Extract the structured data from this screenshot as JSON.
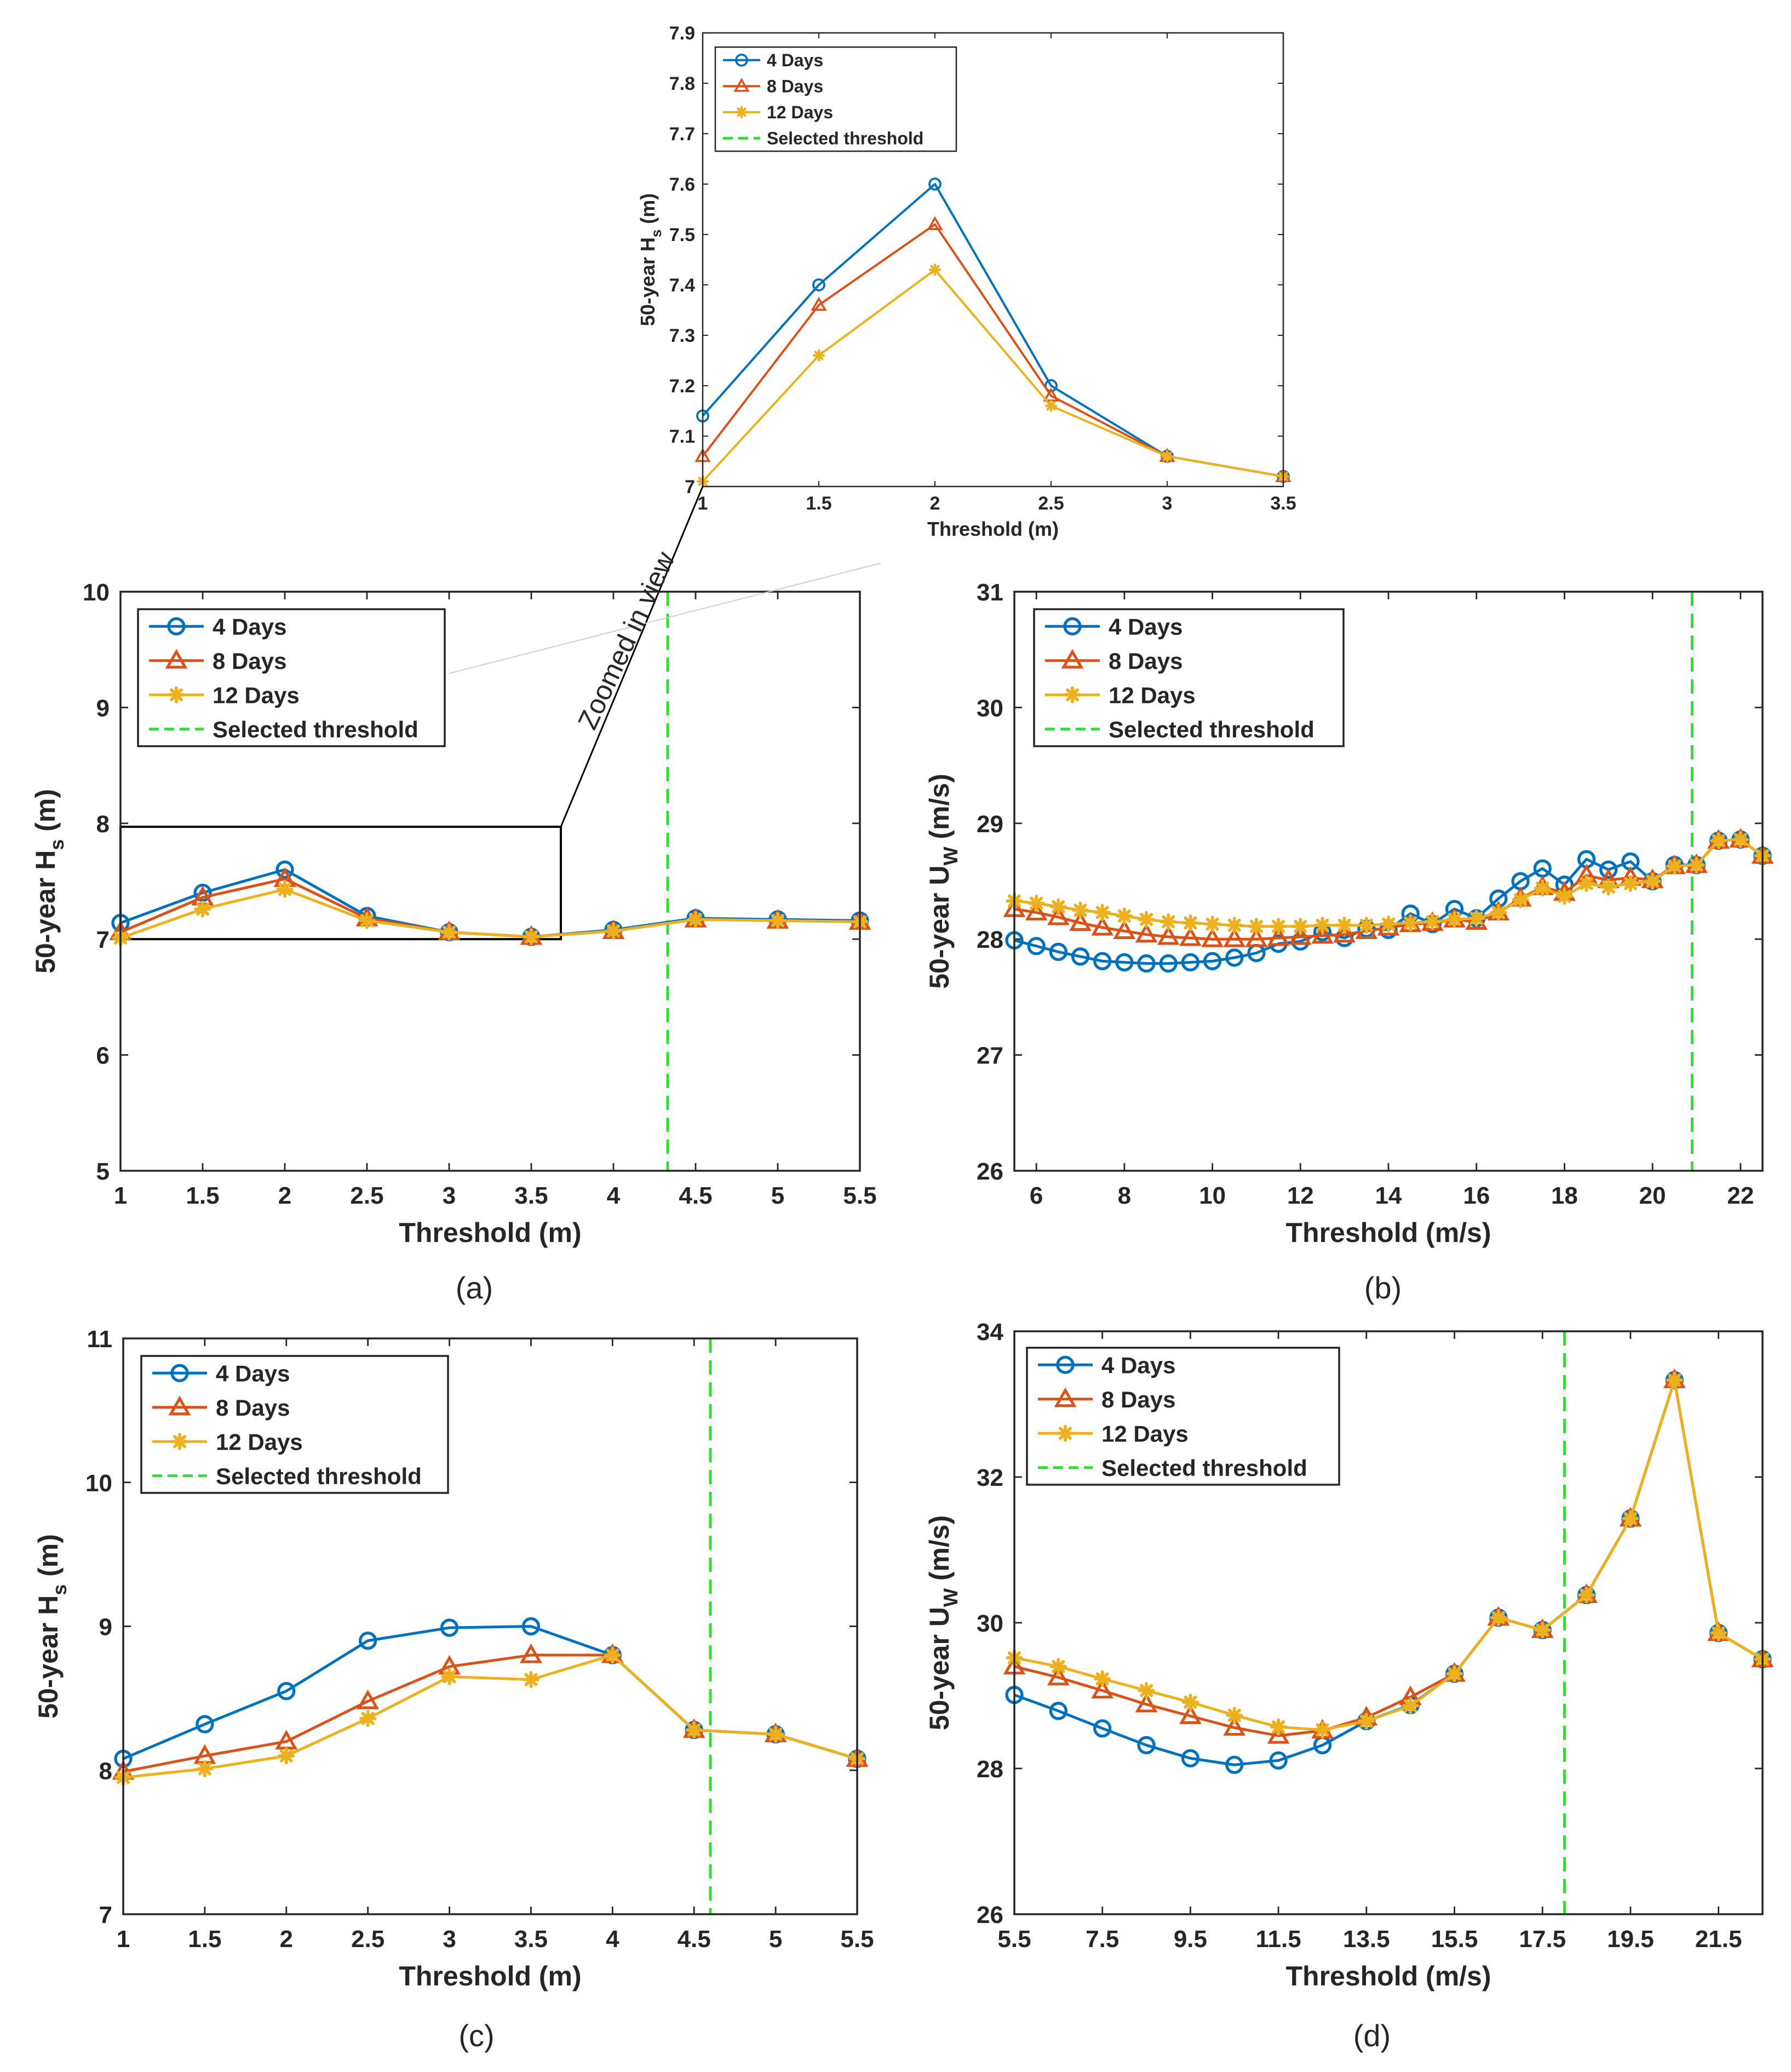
{
  "colors": {
    "s4": "#0072BD",
    "s8": "#D95319",
    "s12": "#EDB120",
    "thr": "#33DD33",
    "axis": "#262626"
  },
  "legend_labels": [
    "4 Days",
    "8 Days",
    "12 Days",
    "Selected threshold"
  ],
  "zoom_label": "Zoomed in view",
  "chart_data": [
    {
      "id": "inset",
      "type": "line",
      "caption": "",
      "xlabel": "Threshold (m)",
      "ylabel": "50-year H_s (m)",
      "ylabel_main": "50-year H",
      "ylabel_sub": "s",
      "ylabel_tail": " (m)",
      "xlim": [
        1,
        3.5
      ],
      "ylim": [
        7,
        7.9
      ],
      "xticks": [
        1,
        1.5,
        2,
        2.5,
        3,
        3.5
      ],
      "xtick_labels": [
        "1",
        "1.5",
        "2",
        "2.5",
        "3",
        "3.5"
      ],
      "yticks": [
        7,
        7.1,
        7.2,
        7.3,
        7.4,
        7.5,
        7.6,
        7.7,
        7.8,
        7.9
      ],
      "ytick_labels": [
        "7",
        "7.1",
        "7.2",
        "7.3",
        "7.4",
        "7.5",
        "7.6",
        "7.7",
        "7.8",
        "7.9"
      ],
      "threshold": null,
      "series": [
        {
          "name": "4 Days",
          "x": [
            1,
            1.5,
            2,
            2.5,
            3,
            3.5
          ],
          "values": [
            7.14,
            7.4,
            7.6,
            7.2,
            7.06,
            7.02
          ]
        },
        {
          "name": "8 Days",
          "x": [
            1,
            1.5,
            2,
            2.5,
            3,
            3.5
          ],
          "values": [
            7.06,
            7.36,
            7.52,
            7.18,
            7.06,
            7.02
          ]
        },
        {
          "name": "12 Days",
          "x": [
            1,
            1.5,
            2,
            2.5,
            3,
            3.5
          ],
          "values": [
            7.01,
            7.26,
            7.43,
            7.16,
            7.06,
            7.02
          ]
        }
      ]
    },
    {
      "id": "a",
      "type": "line",
      "caption": "(a)",
      "xlabel": "Threshold (m)",
      "ylabel": "50-year H_s (m)",
      "ylabel_main": "50-year H",
      "ylabel_sub": "s",
      "ylabel_tail": " (m)",
      "xlim": [
        1,
        5.5
      ],
      "ylim": [
        5,
        10
      ],
      "xticks": [
        1,
        1.5,
        2,
        2.5,
        3,
        3.5,
        4,
        4.5,
        5,
        5.5
      ],
      "xtick_labels": [
        "1",
        "1.5",
        "2",
        "2.5",
        "3",
        "3.5",
        "4",
        "4.5",
        "5",
        "5.5"
      ],
      "yticks": [
        5,
        6,
        7,
        8,
        9,
        10
      ],
      "ytick_labels": [
        "5",
        "6",
        "7",
        "8",
        "9",
        "10"
      ],
      "threshold": 4.33,
      "zoom_box": {
        "x": [
          1,
          3.68
        ],
        "y": [
          7,
          7.97
        ]
      },
      "series": [
        {
          "name": "4 Days",
          "x": [
            1,
            1.5,
            2,
            2.5,
            3,
            3.5,
            4,
            4.5,
            5,
            5.5
          ],
          "values": [
            7.14,
            7.4,
            7.6,
            7.2,
            7.06,
            7.02,
            7.08,
            7.18,
            7.17,
            7.16
          ]
        },
        {
          "name": "8 Days",
          "x": [
            1,
            1.5,
            2,
            2.5,
            3,
            3.5,
            4,
            4.5,
            5,
            5.5
          ],
          "values": [
            7.06,
            7.36,
            7.52,
            7.18,
            7.06,
            7.02,
            7.07,
            7.17,
            7.16,
            7.15
          ]
        },
        {
          "name": "12 Days",
          "x": [
            1,
            1.5,
            2,
            2.5,
            3,
            3.5,
            4,
            4.5,
            5,
            5.5
          ],
          "values": [
            7.01,
            7.26,
            7.43,
            7.16,
            7.06,
            7.02,
            7.07,
            7.17,
            7.16,
            7.15
          ]
        }
      ]
    },
    {
      "id": "b",
      "type": "line",
      "caption": "(b)",
      "xlabel": "Threshold (m/s)",
      "ylabel": "50-year U_W (m/s)",
      "ylabel_main": "50-year U",
      "ylabel_sub": "W",
      "ylabel_tail": " (m/s)",
      "xlim": [
        5.5,
        22.5
      ],
      "ylim": [
        26,
        31
      ],
      "xticks": [
        6,
        8,
        10,
        12,
        14,
        16,
        18,
        20,
        22
      ],
      "xtick_labels": [
        "6",
        "8",
        "10",
        "12",
        "14",
        "16",
        "18",
        "20",
        "22"
      ],
      "yticks": [
        26,
        27,
        28,
        29,
        30,
        31
      ],
      "ytick_labels": [
        "26",
        "27",
        "28",
        "29",
        "30",
        "31"
      ],
      "threshold": 20.9,
      "series": [
        {
          "name": "4 Days",
          "x": [
            5.5,
            6,
            6.5,
            7,
            7.5,
            8,
            8.5,
            9,
            9.5,
            10,
            10.5,
            11,
            11.5,
            12,
            12.5,
            13,
            13.5,
            14,
            14.5,
            15,
            15.5,
            16,
            16.5,
            17,
            17.5,
            18,
            18.5,
            19,
            19.5,
            20,
            20.5,
            21,
            21.5,
            22,
            22.5
          ],
          "values": [
            27.99,
            27.94,
            27.89,
            27.85,
            27.81,
            27.8,
            27.79,
            27.79,
            27.8,
            27.81,
            27.84,
            27.88,
            27.96,
            27.98,
            28.06,
            28.01,
            28.09,
            28.08,
            28.22,
            28.13,
            28.26,
            28.18,
            28.35,
            28.5,
            28.61,
            28.47,
            28.69,
            28.6,
            28.67,
            28.5,
            28.64,
            28.64,
            28.85,
            28.86,
            28.72
          ]
        },
        {
          "name": "8 Days",
          "x": [
            5.5,
            6,
            6.5,
            7,
            7.5,
            8,
            8.5,
            9,
            9.5,
            10,
            10.5,
            11,
            11.5,
            12,
            12.5,
            13,
            13.5,
            14,
            14.5,
            15,
            15.5,
            16,
            16.5,
            17,
            17.5,
            18,
            18.5,
            19,
            19.5,
            20,
            20.5,
            21,
            21.5,
            22,
            22.5
          ],
          "values": [
            28.26,
            28.23,
            28.19,
            28.14,
            28.1,
            28.07,
            28.04,
            28.02,
            28.01,
            28.0,
            28.0,
            28.0,
            28.01,
            28.02,
            28.03,
            28.04,
            28.07,
            28.1,
            28.13,
            28.14,
            28.17,
            28.15,
            28.23,
            28.35,
            28.45,
            28.4,
            28.55,
            28.51,
            28.53,
            28.51,
            28.63,
            28.64,
            28.85,
            28.86,
            28.72
          ]
        },
        {
          "name": "12 Days",
          "x": [
            5.5,
            6,
            6.5,
            7,
            7.5,
            8,
            8.5,
            9,
            9.5,
            10,
            10.5,
            11,
            11.5,
            12,
            12.5,
            13,
            13.5,
            14,
            14.5,
            15,
            15.5,
            16,
            16.5,
            17,
            17.5,
            18,
            18.5,
            19,
            19.5,
            20,
            20.5,
            21,
            21.5,
            22,
            22.5
          ],
          "values": [
            28.33,
            28.31,
            28.28,
            28.25,
            28.23,
            28.2,
            28.17,
            28.15,
            28.14,
            28.13,
            28.12,
            28.11,
            28.11,
            28.11,
            28.12,
            28.12,
            28.12,
            28.13,
            28.14,
            28.15,
            28.17,
            28.18,
            28.23,
            28.34,
            28.44,
            28.37,
            28.48,
            28.45,
            28.48,
            28.5,
            28.63,
            28.64,
            28.85,
            28.86,
            28.72
          ]
        }
      ]
    },
    {
      "id": "c",
      "type": "line",
      "caption": "(c)",
      "xlabel": "Threshold (m)",
      "ylabel": "50-year H_s (m)",
      "ylabel_main": "50-year H",
      "ylabel_sub": "s",
      "ylabel_tail": " (m)",
      "xlim": [
        1,
        5.5
      ],
      "ylim": [
        7,
        11
      ],
      "xticks": [
        1,
        1.5,
        2,
        2.5,
        3,
        3.5,
        4,
        4.5,
        5,
        5.5
      ],
      "xtick_labels": [
        "1",
        "1.5",
        "2",
        "2.5",
        "3",
        "3.5",
        "4",
        "4.5",
        "5",
        "5.5"
      ],
      "yticks": [
        7,
        8,
        9,
        10,
        11
      ],
      "ytick_labels": [
        "7",
        "8",
        "9",
        "10",
        "11"
      ],
      "threshold": 4.6,
      "series": [
        {
          "name": "4 Days",
          "x": [
            1,
            1.5,
            2,
            2.5,
            3,
            3.5,
            4,
            4.5,
            5,
            5.5
          ],
          "values": [
            8.08,
            8.32,
            8.55,
            8.9,
            8.99,
            9.0,
            8.8,
            8.28,
            8.25,
            8.08
          ]
        },
        {
          "name": "8 Days",
          "x": [
            1,
            1.5,
            2,
            2.5,
            3,
            3.5,
            4,
            4.5,
            5,
            5.5
          ],
          "values": [
            7.99,
            8.1,
            8.2,
            8.48,
            8.72,
            8.8,
            8.8,
            8.28,
            8.25,
            8.08
          ]
        },
        {
          "name": "12 Days",
          "x": [
            1,
            1.5,
            2,
            2.5,
            3,
            3.5,
            4,
            4.5,
            5,
            5.5
          ],
          "values": [
            7.95,
            8.01,
            8.1,
            8.36,
            8.65,
            8.63,
            8.8,
            8.28,
            8.25,
            8.08
          ]
        }
      ]
    },
    {
      "id": "d",
      "type": "line",
      "caption": "(d)",
      "xlabel": "Threshold (m/s)",
      "ylabel": "50-year U_W (m/s)",
      "ylabel_main": "50-year U",
      "ylabel_sub": "W",
      "ylabel_tail": " (m/s)",
      "xlim": [
        5.5,
        22.5
      ],
      "ylim": [
        26,
        34
      ],
      "xticks": [
        5.5,
        7.5,
        9.5,
        11.5,
        13.5,
        15.5,
        17.5,
        19.5,
        21.5
      ],
      "xtick_labels": [
        "5.5",
        "7.5",
        "9.5",
        "11.5",
        "13.5",
        "15.5",
        "17.5",
        "19.5",
        "21.5"
      ],
      "yticks": [
        26,
        28,
        30,
        32,
        34
      ],
      "ytick_labels": [
        "26",
        "28",
        "30",
        "32",
        "34"
      ],
      "threshold": 18.0,
      "series": [
        {
          "name": "4 Days",
          "x": [
            5.5,
            6.5,
            7.5,
            8.5,
            9.5,
            10.5,
            11.5,
            12.5,
            13.5,
            14.5,
            15.5,
            16.5,
            17.5,
            18.5,
            19.5,
            20.5,
            21.5,
            22.5
          ],
          "values": [
            29.01,
            28.79,
            28.55,
            28.32,
            28.14,
            28.05,
            28.11,
            28.32,
            28.65,
            28.87,
            29.3,
            30.07,
            29.9,
            30.38,
            31.43,
            33.33,
            29.86,
            29.5
          ]
        },
        {
          "name": "8 Days",
          "x": [
            5.5,
            6.5,
            7.5,
            8.5,
            9.5,
            10.5,
            11.5,
            12.5,
            13.5,
            14.5,
            15.5,
            16.5,
            17.5,
            18.5,
            19.5,
            20.5,
            21.5,
            22.5
          ],
          "values": [
            29.4,
            29.25,
            29.07,
            28.88,
            28.72,
            28.56,
            28.45,
            28.52,
            28.7,
            28.98,
            29.3,
            30.07,
            29.9,
            30.38,
            31.43,
            33.33,
            29.86,
            29.5
          ]
        },
        {
          "name": "12 Days",
          "x": [
            5.5,
            6.5,
            7.5,
            8.5,
            9.5,
            10.5,
            11.5,
            12.5,
            13.5,
            14.5,
            15.5,
            16.5,
            17.5,
            18.5,
            19.5,
            20.5,
            21.5,
            22.5
          ],
          "values": [
            29.52,
            29.4,
            29.23,
            29.07,
            28.91,
            28.73,
            28.57,
            28.53,
            28.65,
            28.86,
            29.3,
            30.07,
            29.9,
            30.38,
            31.43,
            33.33,
            29.86,
            29.5
          ]
        }
      ]
    }
  ]
}
